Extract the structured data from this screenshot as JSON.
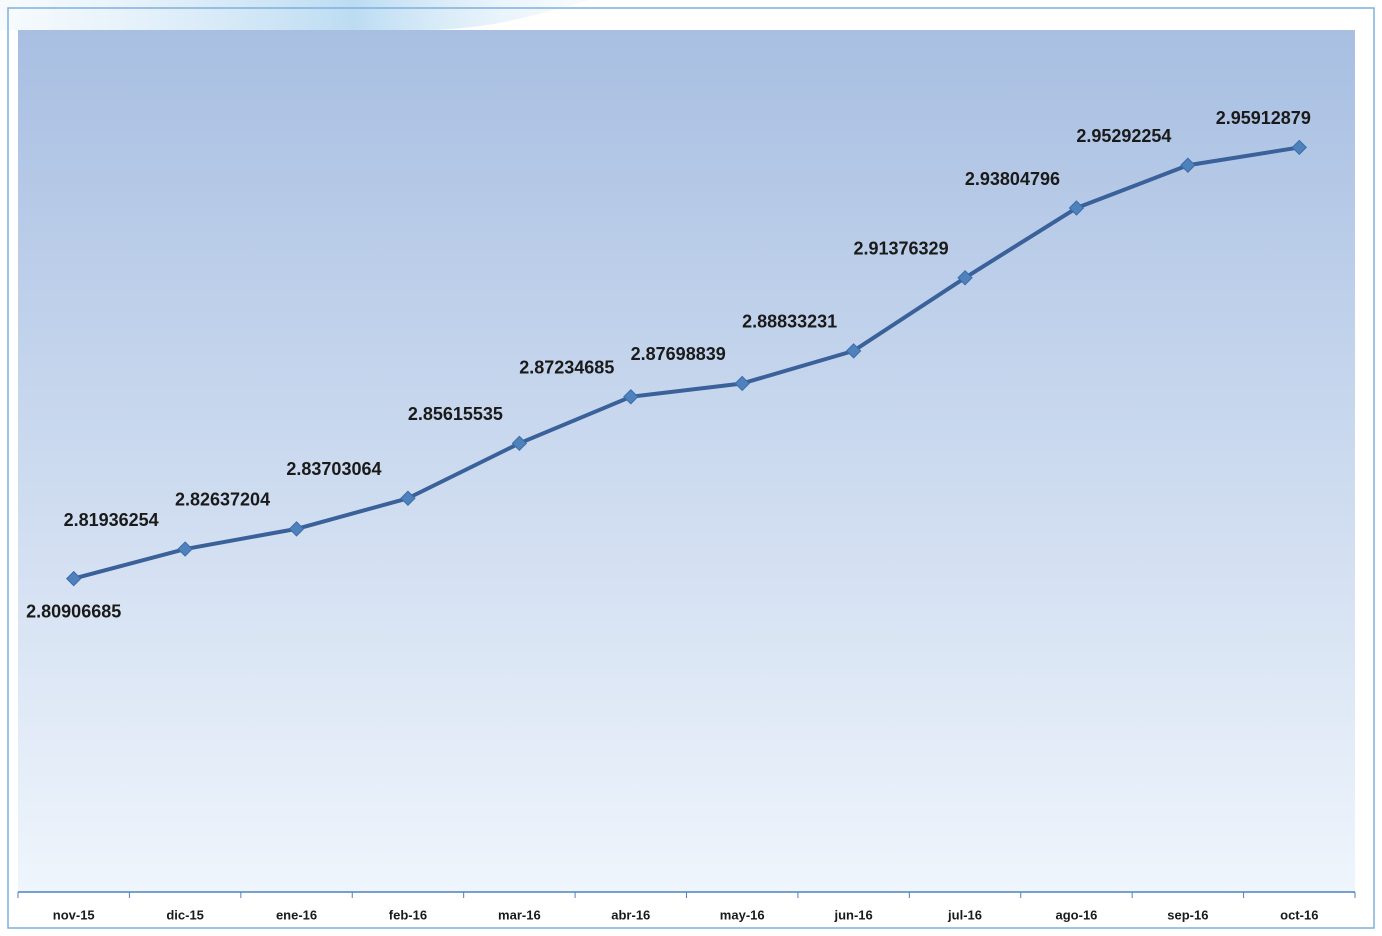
{
  "chart_data": {
    "type": "line",
    "categories": [
      "nov-15",
      "dic-15",
      "ene-16",
      "feb-16",
      "mar-16",
      "abr-16",
      "may-16",
      "jun-16",
      "jul-16",
      "ago-16",
      "sep-16",
      "oct-16"
    ],
    "series": [
      {
        "color": "#3a6199",
        "values": [
          2.80906685,
          2.81936254,
          2.82637204,
          2.83703064,
          2.85615535,
          2.87234685,
          2.87698839,
          2.88833231,
          2.91376329,
          2.93804796,
          2.95292254,
          2.95912879
        ]
      }
    ],
    "ylim": [
      2.7,
      3.0
    ]
  }
}
